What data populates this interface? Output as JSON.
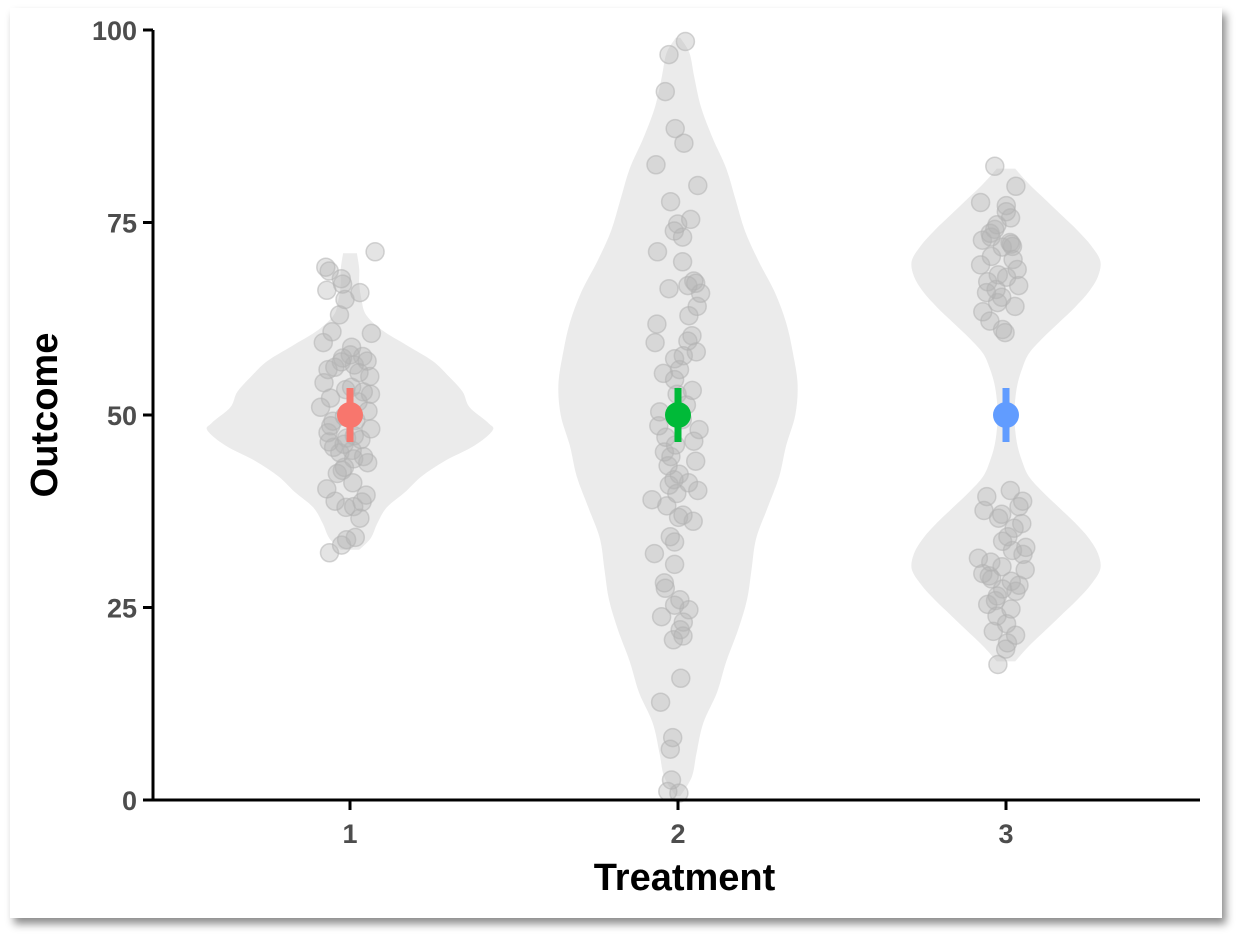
{
  "chart_data": {
    "type": "violin",
    "xlabel": "Treatment",
    "ylabel": "Outcome",
    "categories": [
      "1",
      "2",
      "3"
    ],
    "ylim": [
      0,
      100
    ],
    "yticks": [
      0,
      25,
      50,
      75,
      100
    ],
    "yticklabels": [
      "0",
      "25",
      "50",
      "75",
      "100"
    ],
    "grid": false,
    "legend": "none",
    "colors": {
      "violin_fill": "#ebebeb",
      "points": "#b3b3b3",
      "axis": "#000000",
      "tick_text": "#4d4d4d",
      "means": [
        "#f8766d",
        "#00ba38",
        "#619cff"
      ]
    },
    "summary": [
      {
        "category": "1",
        "mean": 50,
        "lower": 46.5,
        "upper": 53.5,
        "color": "#f8766d"
      },
      {
        "category": "2",
        "mean": 50,
        "lower": 46.5,
        "upper": 53.5,
        "color": "#00ba38"
      },
      {
        "category": "3",
        "mean": 50,
        "lower": 46.5,
        "upper": 53.5,
        "color": "#619cff"
      }
    ],
    "violins": [
      {
        "category": "1",
        "density_profile": [
          [
            32.5,
            0.2
          ],
          [
            34,
            0.45
          ],
          [
            36,
            0.6
          ],
          [
            38,
            0.8
          ],
          [
            40,
            1.2
          ],
          [
            42,
            1.55
          ],
          [
            44,
            2.05
          ],
          [
            46,
            2.7
          ],
          [
            48,
            3.1
          ],
          [
            49,
            3.0
          ],
          [
            51,
            2.6
          ],
          [
            53,
            2.45
          ],
          [
            55,
            2.15
          ],
          [
            57,
            1.8
          ],
          [
            59,
            1.25
          ],
          [
            61,
            0.7
          ],
          [
            63,
            0.35
          ],
          [
            65,
            0.25
          ],
          [
            67,
            0.2
          ],
          [
            69,
            0.2
          ],
          [
            71,
            0.15
          ]
        ],
        "points": [
          69.2,
          68.7,
          67.7,
          67,
          66.2,
          65.9,
          65,
          63,
          60.8,
          59.4,
          57.8,
          57.4,
          57,
          56.5,
          56.2,
          55.9,
          55.5,
          55,
          54.2,
          53.6,
          53.3,
          53,
          52.2,
          51.7,
          51,
          50.5,
          49.8,
          49.3,
          48.6,
          48.2,
          47.7,
          47.3,
          47,
          46.8,
          46.5,
          46.2,
          45.8,
          45.4,
          45.1,
          44.6,
          43.8,
          43.2,
          42.8,
          42.4,
          41.2,
          40.4,
          39.6,
          38.8,
          38.7,
          38.1,
          38,
          36.6,
          34.1,
          33.8,
          33.1,
          32.1,
          71.2,
          60.6,
          58.8,
          57.6,
          56.9,
          52.7,
          49.2,
          44.3
        ],
        "point_dx": [
          -7.8,
          -6.7,
          -2.8,
          -2.4,
          -7.5,
          3.2,
          -1.6,
          -3.4,
          -5.8,
          -8.6,
          0.1,
          -2.4,
          5.5,
          1.4,
          -4.9,
          -7.1,
          2.9,
          6.4,
          -8.4,
          0.5,
          -1.4,
          4.3,
          -6.3,
          2.6,
          -9.5,
          5.8,
          -1.8,
          1.9,
          -6.2,
          6.7,
          -7.1,
          1.4,
          -1.1,
          3.5,
          -6.7,
          -1.9,
          -5.3,
          0.7,
          -3.3,
          4.4,
          5.7,
          -1.8,
          -2.5,
          -4.1,
          0.9,
          -7.5,
          5.2,
          -4.8,
          3.9,
          1.2,
          -1.3,
          3.2,
          1.7,
          -1.1,
          -2.7,
          -6.6,
          8.1,
          6.9,
          0.5,
          4.1,
          -2.8,
          6.6,
          -5.5,
          1.2
        ]
      },
      {
        "category": "2",
        "density_profile": [
          [
            0.5,
            0.05
          ],
          [
            3,
            0.3
          ],
          [
            6,
            0.4
          ],
          [
            10,
            0.55
          ],
          [
            14,
            0.85
          ],
          [
            18,
            1.05
          ],
          [
            22,
            1.3
          ],
          [
            26,
            1.5
          ],
          [
            30,
            1.6
          ],
          [
            34,
            1.7
          ],
          [
            38,
            1.95
          ],
          [
            42,
            2.2
          ],
          [
            46,
            2.35
          ],
          [
            50,
            2.55
          ],
          [
            54,
            2.6
          ],
          [
            58,
            2.5
          ],
          [
            62,
            2.35
          ],
          [
            66,
            2.1
          ],
          [
            70,
            1.75
          ],
          [
            74,
            1.45
          ],
          [
            78,
            1.25
          ],
          [
            82,
            1.05
          ],
          [
            86,
            0.75
          ],
          [
            90,
            0.5
          ],
          [
            94,
            0.35
          ],
          [
            97,
            0.25
          ],
          [
            99,
            0.05
          ]
        ],
        "points": [
          98.5,
          96.8,
          92,
          87.2,
          85.3,
          82.5,
          79.8,
          77.7,
          75.4,
          74.8,
          73.9,
          73.1,
          71.2,
          69.9,
          67.4,
          67.1,
          66.8,
          66.4,
          65.8,
          64.1,
          62.9,
          61.8,
          60.3,
          59.6,
          59.4,
          58.2,
          57.7,
          57.3,
          55.9,
          55.4,
          54.6,
          53.2,
          52.7,
          51.3,
          50.4,
          49.4,
          48.6,
          48.1,
          47.1,
          46.6,
          46.1,
          45.2,
          44.6,
          44,
          43.4,
          42.3,
          41.6,
          41.2,
          40.9,
          40.2,
          39.8,
          39,
          38.2,
          37,
          36.7,
          36.2,
          34.2,
          33.5,
          32,
          30.6,
          28.2,
          27.5,
          26,
          25.3,
          24.7,
          23.8,
          23.1,
          22.1,
          21.3,
          20.8,
          15.8,
          12.7,
          8.1,
          6.6,
          2.6,
          1.1,
          0.9
        ],
        "point_dx": [
          2.4,
          -2.9,
          -4.1,
          -0.9,
          1.9,
          -7.1,
          6.4,
          -2.4,
          4.1,
          -0.1,
          -1.2,
          1.5,
          -6.6,
          1.5,
          5.1,
          5.7,
          3.2,
          -2.9,
          7.3,
          6.2,
          3.5,
          -6.8,
          4.5,
          3.2,
          -7.4,
          5.9,
          1.7,
          -1.1,
          0.5,
          -4.7,
          -1.1,
          4.6,
          -0.3,
          2.7,
          -5.9,
          1.4,
          -6.2,
          6.8,
          -3.9,
          5.1,
          -0.8,
          -4.4,
          -2.3,
          5.7,
          -3.2,
          0.4,
          -1.3,
          3.4,
          -2.8,
          6.4,
          -0.4,
          -8.4,
          -3.6,
          1.6,
          0.2,
          4.9,
          -2.5,
          -1.1,
          -7.6,
          -1.1,
          -4.4,
          -4.1,
          0.6,
          -1.1,
          3.5,
          -5.3,
          1.7,
          0.7,
          1.6,
          -1.5,
          0.9,
          -5.6,
          -1.7,
          -2.5,
          -2.1,
          -3.3,
          0.3
        ]
      },
      {
        "category": "3",
        "density_profile": [
          [
            18,
            0.2
          ],
          [
            20,
            0.5
          ],
          [
            22,
            0.85
          ],
          [
            24,
            1.2
          ],
          [
            26,
            1.55
          ],
          [
            28,
            1.85
          ],
          [
            30,
            2.05
          ],
          [
            32,
            2.0
          ],
          [
            34,
            1.8
          ],
          [
            36,
            1.5
          ],
          [
            38,
            1.15
          ],
          [
            40,
            0.8
          ],
          [
            42,
            0.5
          ],
          [
            44,
            0.35
          ],
          [
            46,
            0.25
          ],
          [
            48,
            0.2
          ],
          [
            50,
            0.18
          ],
          [
            52,
            0.2
          ],
          [
            54,
            0.25
          ],
          [
            56,
            0.35
          ],
          [
            58,
            0.5
          ],
          [
            60,
            0.8
          ],
          [
            62,
            1.15
          ],
          [
            64,
            1.5
          ],
          [
            66,
            1.8
          ],
          [
            68,
            2.0
          ],
          [
            70,
            2.05
          ],
          [
            72,
            1.85
          ],
          [
            74,
            1.55
          ],
          [
            76,
            1.2
          ],
          [
            78,
            0.85
          ],
          [
            80,
            0.5
          ],
          [
            82,
            0.2
          ]
        ],
        "points": [
          82.3,
          79.7,
          77.6,
          77.2,
          76.4,
          75.6,
          74.7,
          74.1,
          73.6,
          73.1,
          72.7,
          72.4,
          72.2,
          71.9,
          71.8,
          70.6,
          70.2,
          69.5,
          68.9,
          68.2,
          67.9,
          67.3,
          66.8,
          66.3,
          65.9,
          65.3,
          64.6,
          64.1,
          63.4,
          62.2,
          61.1,
          60.7,
          40.2,
          39.4,
          38.8,
          38.1,
          37.6,
          37.1,
          36.6,
          35.9,
          35.3,
          34.2,
          33.6,
          32.8,
          32.4,
          31.9,
          31.4,
          30.9,
          30.3,
          29.9,
          29.4,
          29.1,
          28.7,
          28.4,
          27.9,
          27.4,
          27.1,
          26.5,
          25.9,
          25.4,
          24.8,
          23.9,
          22.9,
          21.9,
          21.4,
          20.4,
          19.6,
          17.6
        ],
        "point_dx": [
          -3.6,
          3.2,
          -8.2,
          0.1,
          0.1,
          1.5,
          -2.9,
          -3.6,
          -5.1,
          -4.8,
          -7.6,
          1.3,
          1.7,
          2.1,
          -1.2,
          -4.7,
          2.3,
          -8.2,
          3.6,
          -2.5,
          0.2,
          -5.9,
          4.1,
          -3.2,
          -6.3,
          -1.4,
          -2.7,
          2.9,
          -7.5,
          -5.2,
          -1.1,
          -0.3,
          1.4,
          -6.2,
          5.4,
          4.2,
          -7.1,
          -1.4,
          -2.4,
          5.1,
          2.6,
          0.6,
          -1.1,
          6.4,
          2.1,
          5.5,
          -8.9,
          -4.9,
          -1.3,
          6.2,
          -7.5,
          -5.4,
          -4.6,
          1.7,
          4.2,
          -1.1,
          3.2,
          -2.8,
          -3.4,
          -5.9,
          1.6,
          -2.9,
          0.2,
          -4.1,
          3.1,
          0.5,
          -0.1,
          -2.6
        ]
      }
    ]
  }
}
